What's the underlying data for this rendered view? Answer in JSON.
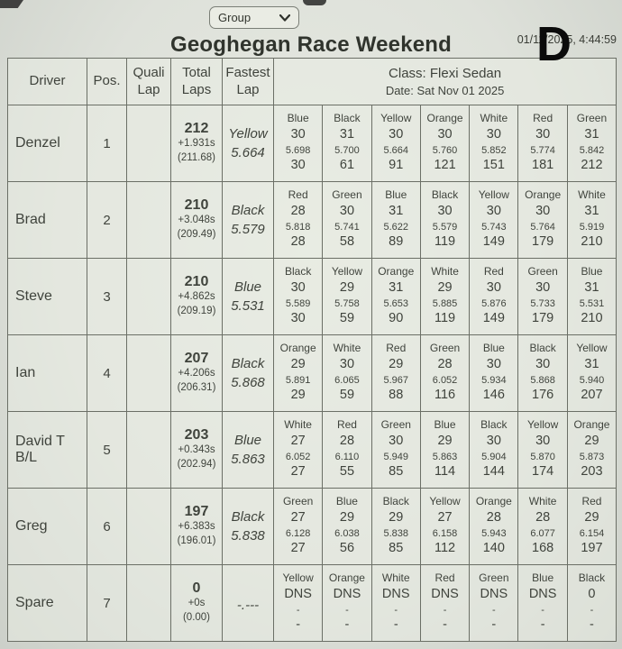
{
  "colors": {
    "paper": "#e7eae2",
    "ink": "#3f433c",
    "grid": "#6b6f66"
  },
  "controls": {
    "group_label": "Group"
  },
  "header": {
    "title": "Geoghegan Race Weekend",
    "timestamp": "01/11/2025, 4:44:59",
    "overlay_letter": "D"
  },
  "table": {
    "columns": {
      "driver": "Driver",
      "pos": "Pos.",
      "quali": "Quali Lap",
      "total": "Total Laps",
      "fastest": "Fastest Lap"
    },
    "class_header": {
      "line1": "Class: Flexi Sedan",
      "line2": "Date: Sat Nov 01 2025"
    },
    "rows": [
      {
        "driver": "Denzel",
        "pos": "1",
        "quali": "",
        "total": {
          "laps": "212",
          "gap": "+1.931s",
          "avg": "(211.68)"
        },
        "fastest": {
          "color": "Yellow",
          "time": "5.664"
        },
        "stints": [
          {
            "color": "Blue",
            "laps": "30",
            "best": "5.698",
            "cum": "30"
          },
          {
            "color": "Black",
            "laps": "31",
            "best": "5.700",
            "cum": "61"
          },
          {
            "color": "Yellow",
            "laps": "30",
            "best": "5.664",
            "cum": "91"
          },
          {
            "color": "Orange",
            "laps": "30",
            "best": "5.760",
            "cum": "121"
          },
          {
            "color": "White",
            "laps": "30",
            "best": "5.852",
            "cum": "151"
          },
          {
            "color": "Red",
            "laps": "30",
            "best": "5.774",
            "cum": "181"
          },
          {
            "color": "Green",
            "laps": "31",
            "best": "5.842",
            "cum": "212"
          }
        ]
      },
      {
        "driver": "Brad",
        "pos": "2",
        "quali": "",
        "total": {
          "laps": "210",
          "gap": "+3.048s",
          "avg": "(209.49)"
        },
        "fastest": {
          "color": "Black",
          "time": "5.579"
        },
        "stints": [
          {
            "color": "Red",
            "laps": "28",
            "best": "5.818",
            "cum": "28"
          },
          {
            "color": "Green",
            "laps": "30",
            "best": "5.741",
            "cum": "58"
          },
          {
            "color": "Blue",
            "laps": "31",
            "best": "5.622",
            "cum": "89"
          },
          {
            "color": "Black",
            "laps": "30",
            "best": "5.579",
            "cum": "119"
          },
          {
            "color": "Yellow",
            "laps": "30",
            "best": "5.743",
            "cum": "149"
          },
          {
            "color": "Orange",
            "laps": "30",
            "best": "5.764",
            "cum": "179"
          },
          {
            "color": "White",
            "laps": "31",
            "best": "5.919",
            "cum": "210"
          }
        ]
      },
      {
        "driver": "Steve",
        "pos": "3",
        "quali": "",
        "total": {
          "laps": "210",
          "gap": "+4.862s",
          "avg": "(209.19)"
        },
        "fastest": {
          "color": "Blue",
          "time": "5.531"
        },
        "stints": [
          {
            "color": "Black",
            "laps": "30",
            "best": "5.589",
            "cum": "30"
          },
          {
            "color": "Yellow",
            "laps": "29",
            "best": "5.758",
            "cum": "59"
          },
          {
            "color": "Orange",
            "laps": "31",
            "best": "5.653",
            "cum": "90"
          },
          {
            "color": "White",
            "laps": "29",
            "best": "5.885",
            "cum": "119"
          },
          {
            "color": "Red",
            "laps": "30",
            "best": "5.876",
            "cum": "149"
          },
          {
            "color": "Green",
            "laps": "30",
            "best": "5.733",
            "cum": "179"
          },
          {
            "color": "Blue",
            "laps": "31",
            "best": "5.531",
            "cum": "210"
          }
        ]
      },
      {
        "driver": "Ian",
        "pos": "4",
        "quali": "",
        "total": {
          "laps": "207",
          "gap": "+4.206s",
          "avg": "(206.31)"
        },
        "fastest": {
          "color": "Black",
          "time": "5.868"
        },
        "stints": [
          {
            "color": "Orange",
            "laps": "29",
            "best": "5.891",
            "cum": "29"
          },
          {
            "color": "White",
            "laps": "30",
            "best": "6.065",
            "cum": "59"
          },
          {
            "color": "Red",
            "laps": "29",
            "best": "5.967",
            "cum": "88"
          },
          {
            "color": "Green",
            "laps": "28",
            "best": "6.052",
            "cum": "116"
          },
          {
            "color": "Blue",
            "laps": "30",
            "best": "5.934",
            "cum": "146"
          },
          {
            "color": "Black",
            "laps": "30",
            "best": "5.868",
            "cum": "176"
          },
          {
            "color": "Yellow",
            "laps": "31",
            "best": "5.940",
            "cum": "207"
          }
        ]
      },
      {
        "driver": "David T B/L",
        "pos": "5",
        "quali": "",
        "total": {
          "laps": "203",
          "gap": "+0.343s",
          "avg": "(202.94)"
        },
        "fastest": {
          "color": "Blue",
          "time": "5.863"
        },
        "stints": [
          {
            "color": "White",
            "laps": "27",
            "best": "6.052",
            "cum": "27"
          },
          {
            "color": "Red",
            "laps": "28",
            "best": "6.110",
            "cum": "55"
          },
          {
            "color": "Green",
            "laps": "30",
            "best": "5.949",
            "cum": "85"
          },
          {
            "color": "Blue",
            "laps": "29",
            "best": "5.863",
            "cum": "114"
          },
          {
            "color": "Black",
            "laps": "30",
            "best": "5.904",
            "cum": "144"
          },
          {
            "color": "Yellow",
            "laps": "30",
            "best": "5.870",
            "cum": "174"
          },
          {
            "color": "Orange",
            "laps": "29",
            "best": "5.873",
            "cum": "203"
          }
        ]
      },
      {
        "driver": "Greg",
        "pos": "6",
        "quali": "",
        "total": {
          "laps": "197",
          "gap": "+6.383s",
          "avg": "(196.01)"
        },
        "fastest": {
          "color": "Black",
          "time": "5.838"
        },
        "stints": [
          {
            "color": "Green",
            "laps": "27",
            "best": "6.128",
            "cum": "27"
          },
          {
            "color": "Blue",
            "laps": "29",
            "best": "6.038",
            "cum": "56"
          },
          {
            "color": "Black",
            "laps": "29",
            "best": "5.838",
            "cum": "85"
          },
          {
            "color": "Yellow",
            "laps": "27",
            "best": "6.158",
            "cum": "112"
          },
          {
            "color": "Orange",
            "laps": "28",
            "best": "5.943",
            "cum": "140"
          },
          {
            "color": "White",
            "laps": "28",
            "best": "6.077",
            "cum": "168"
          },
          {
            "color": "Red",
            "laps": "29",
            "best": "6.154",
            "cum": "197"
          }
        ]
      },
      {
        "driver": "Spare",
        "pos": "7",
        "quali": "",
        "total": {
          "laps": "0",
          "gap": "+0s",
          "avg": "(0.00)"
        },
        "fastest": {
          "color": "",
          "time": "-.---"
        },
        "stints": [
          {
            "color": "Yellow",
            "laps": "DNS",
            "best": "-",
            "cum": "-"
          },
          {
            "color": "Orange",
            "laps": "DNS",
            "best": "-",
            "cum": "-"
          },
          {
            "color": "White",
            "laps": "DNS",
            "best": "-",
            "cum": "-"
          },
          {
            "color": "Red",
            "laps": "DNS",
            "best": "-",
            "cum": "-"
          },
          {
            "color": "Green",
            "laps": "DNS",
            "best": "-",
            "cum": "-"
          },
          {
            "color": "Blue",
            "laps": "DNS",
            "best": "-",
            "cum": "-"
          },
          {
            "color": "Black",
            "laps": "0",
            "best": "-",
            "cum": "-"
          }
        ]
      }
    ]
  }
}
